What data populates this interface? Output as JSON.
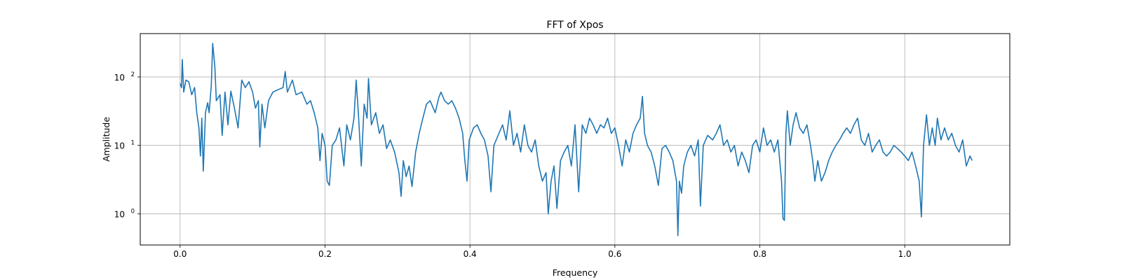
{
  "chart_data": {
    "type": "line",
    "title": "FFT of Xpos",
    "xlabel": "Frequency",
    "ylabel": "Amplitude",
    "xlim": [
      -0.055,
      1.145
    ],
    "ylim": [
      0.35,
      430
    ],
    "yscale": "log",
    "grid": true,
    "x_ticks": [
      {
        "value": 0.0,
        "label": "0.0"
      },
      {
        "value": 0.2,
        "label": "0.2"
      },
      {
        "value": 0.4,
        "label": "0.4"
      },
      {
        "value": 0.6,
        "label": "0.6"
      },
      {
        "value": 0.8,
        "label": "0.8"
      },
      {
        "value": 1.0,
        "label": "1.0"
      }
    ],
    "y_ticks": [
      {
        "value": 1,
        "base": "10",
        "exp": "0"
      },
      {
        "value": 10,
        "base": "10",
        "exp": "1"
      },
      {
        "value": 100,
        "base": "10",
        "exp": "2"
      }
    ],
    "series": [
      {
        "color": "#1f77b4",
        "points": [
          [
            0.0,
            80
          ],
          [
            0.002,
            70
          ],
          [
            0.003,
            180
          ],
          [
            0.005,
            60
          ],
          [
            0.008,
            90
          ],
          [
            0.012,
            85
          ],
          [
            0.016,
            55
          ],
          [
            0.02,
            70
          ],
          [
            0.023,
            30
          ],
          [
            0.026,
            18
          ],
          [
            0.028,
            7
          ],
          [
            0.03,
            25
          ],
          [
            0.032,
            4.2
          ],
          [
            0.035,
            30
          ],
          [
            0.038,
            42
          ],
          [
            0.04,
            30
          ],
          [
            0.043,
            75
          ],
          [
            0.045,
            310
          ],
          [
            0.048,
            140
          ],
          [
            0.05,
            45
          ],
          [
            0.055,
            55
          ],
          [
            0.058,
            14
          ],
          [
            0.062,
            60
          ],
          [
            0.066,
            20
          ],
          [
            0.07,
            62
          ],
          [
            0.075,
            35
          ],
          [
            0.08,
            18
          ],
          [
            0.085,
            90
          ],
          [
            0.09,
            70
          ],
          [
            0.095,
            85
          ],
          [
            0.1,
            60
          ],
          [
            0.104,
            35
          ],
          [
            0.108,
            45
          ],
          [
            0.11,
            9.5
          ],
          [
            0.113,
            40
          ],
          [
            0.117,
            18
          ],
          [
            0.122,
            45
          ],
          [
            0.128,
            60
          ],
          [
            0.135,
            65
          ],
          [
            0.142,
            70
          ],
          [
            0.145,
            120
          ],
          [
            0.148,
            60
          ],
          [
            0.155,
            90
          ],
          [
            0.16,
            55
          ],
          [
            0.168,
            60
          ],
          [
            0.175,
            40
          ],
          [
            0.18,
            45
          ],
          [
            0.185,
            30
          ],
          [
            0.19,
            18
          ],
          [
            0.193,
            6
          ],
          [
            0.196,
            15
          ],
          [
            0.2,
            10
          ],
          [
            0.203,
            3
          ],
          [
            0.206,
            2.6
          ],
          [
            0.21,
            10
          ],
          [
            0.215,
            12
          ],
          [
            0.22,
            18
          ],
          [
            0.226,
            5
          ],
          [
            0.23,
            20
          ],
          [
            0.235,
            12
          ],
          [
            0.24,
            25
          ],
          [
            0.243,
            90
          ],
          [
            0.246,
            30
          ],
          [
            0.25,
            5
          ],
          [
            0.254,
            40
          ],
          [
            0.258,
            25
          ],
          [
            0.26,
            95
          ],
          [
            0.264,
            20
          ],
          [
            0.27,
            30
          ],
          [
            0.275,
            15
          ],
          [
            0.28,
            20
          ],
          [
            0.285,
            9
          ],
          [
            0.29,
            12
          ],
          [
            0.296,
            8
          ],
          [
            0.302,
            4
          ],
          [
            0.305,
            1.8
          ],
          [
            0.308,
            6
          ],
          [
            0.312,
            3.5
          ],
          [
            0.316,
            5
          ],
          [
            0.32,
            2.5
          ],
          [
            0.325,
            8
          ],
          [
            0.33,
            15
          ],
          [
            0.335,
            25
          ],
          [
            0.34,
            40
          ],
          [
            0.345,
            45
          ],
          [
            0.352,
            30
          ],
          [
            0.357,
            50
          ],
          [
            0.36,
            60
          ],
          [
            0.365,
            45
          ],
          [
            0.37,
            40
          ],
          [
            0.375,
            45
          ],
          [
            0.38,
            35
          ],
          [
            0.385,
            25
          ],
          [
            0.39,
            15
          ],
          [
            0.393,
            6
          ],
          [
            0.396,
            3
          ],
          [
            0.399,
            12
          ],
          [
            0.405,
            18
          ],
          [
            0.41,
            20
          ],
          [
            0.415,
            15
          ],
          [
            0.42,
            12
          ],
          [
            0.425,
            7
          ],
          [
            0.429,
            2.1
          ],
          [
            0.433,
            10
          ],
          [
            0.44,
            15
          ],
          [
            0.445,
            20
          ],
          [
            0.45,
            12
          ],
          [
            0.455,
            32
          ],
          [
            0.46,
            10
          ],
          [
            0.465,
            15
          ],
          [
            0.47,
            8
          ],
          [
            0.475,
            20
          ],
          [
            0.48,
            10
          ],
          [
            0.485,
            8
          ],
          [
            0.49,
            12
          ],
          [
            0.495,
            5
          ],
          [
            0.5,
            3
          ],
          [
            0.505,
            4
          ],
          [
            0.508,
            1.0
          ],
          [
            0.512,
            3
          ],
          [
            0.516,
            5
          ],
          [
            0.52,
            1.2
          ],
          [
            0.525,
            6
          ],
          [
            0.53,
            8
          ],
          [
            0.535,
            10
          ],
          [
            0.54,
            5
          ],
          [
            0.545,
            20
          ],
          [
            0.55,
            2.1
          ],
          [
            0.555,
            20
          ],
          [
            0.56,
            15
          ],
          [
            0.565,
            25
          ],
          [
            0.57,
            20
          ],
          [
            0.575,
            15
          ],
          [
            0.58,
            20
          ],
          [
            0.585,
            18
          ],
          [
            0.59,
            25
          ],
          [
            0.595,
            15
          ],
          [
            0.6,
            18
          ],
          [
            0.605,
            10
          ],
          [
            0.61,
            5
          ],
          [
            0.615,
            12
          ],
          [
            0.62,
            8
          ],
          [
            0.625,
            15
          ],
          [
            0.63,
            20
          ],
          [
            0.635,
            25
          ],
          [
            0.638,
            52
          ],
          [
            0.641,
            15
          ],
          [
            0.645,
            10
          ],
          [
            0.65,
            8
          ],
          [
            0.655,
            5
          ],
          [
            0.66,
            2.6
          ],
          [
            0.665,
            9
          ],
          [
            0.67,
            10
          ],
          [
            0.675,
            8
          ],
          [
            0.68,
            6
          ],
          [
            0.685,
            3
          ],
          [
            0.687,
            0.48
          ],
          [
            0.689,
            3
          ],
          [
            0.692,
            2
          ],
          [
            0.695,
            5
          ],
          [
            0.7,
            8
          ],
          [
            0.705,
            10
          ],
          [
            0.71,
            7
          ],
          [
            0.715,
            12
          ],
          [
            0.718,
            1.3
          ],
          [
            0.722,
            10
          ],
          [
            0.728,
            14
          ],
          [
            0.735,
            12
          ],
          [
            0.74,
            15
          ],
          [
            0.745,
            20
          ],
          [
            0.75,
            10
          ],
          [
            0.755,
            12
          ],
          [
            0.76,
            8
          ],
          [
            0.765,
            10
          ],
          [
            0.77,
            5
          ],
          [
            0.775,
            8
          ],
          [
            0.78,
            6
          ],
          [
            0.785,
            4
          ],
          [
            0.79,
            10
          ],
          [
            0.795,
            12
          ],
          [
            0.8,
            8
          ],
          [
            0.805,
            18
          ],
          [
            0.81,
            10
          ],
          [
            0.815,
            12
          ],
          [
            0.82,
            8
          ],
          [
            0.825,
            12
          ],
          [
            0.83,
            3
          ],
          [
            0.832,
            0.85
          ],
          [
            0.834,
            0.8
          ],
          [
            0.836,
            15
          ],
          [
            0.838,
            32
          ],
          [
            0.842,
            10
          ],
          [
            0.846,
            20
          ],
          [
            0.85,
            30
          ],
          [
            0.855,
            18
          ],
          [
            0.86,
            15
          ],
          [
            0.865,
            20
          ],
          [
            0.87,
            10
          ],
          [
            0.873,
            6
          ],
          [
            0.876,
            3
          ],
          [
            0.88,
            6
          ],
          [
            0.885,
            3
          ],
          [
            0.89,
            4
          ],
          [
            0.895,
            6
          ],
          [
            0.9,
            8
          ],
          [
            0.905,
            10
          ],
          [
            0.91,
            12
          ],
          [
            0.915,
            15
          ],
          [
            0.92,
            18
          ],
          [
            0.925,
            15
          ],
          [
            0.93,
            20
          ],
          [
            0.935,
            25
          ],
          [
            0.94,
            12
          ],
          [
            0.945,
            10
          ],
          [
            0.95,
            15
          ],
          [
            0.955,
            8
          ],
          [
            0.96,
            10
          ],
          [
            0.965,
            12
          ],
          [
            0.97,
            8
          ],
          [
            0.975,
            7
          ],
          [
            0.98,
            8
          ],
          [
            0.985,
            10
          ],
          [
            0.99,
            9
          ],
          [
            0.995,
            8
          ],
          [
            1.0,
            7
          ],
          [
            1.005,
            6
          ],
          [
            1.01,
            8
          ],
          [
            1.015,
            5
          ],
          [
            1.02,
            3
          ],
          [
            1.023,
            0.9
          ],
          [
            1.026,
            10
          ],
          [
            1.03,
            28
          ],
          [
            1.034,
            10
          ],
          [
            1.038,
            18
          ],
          [
            1.042,
            10
          ],
          [
            1.045,
            25
          ],
          [
            1.05,
            12
          ],
          [
            1.055,
            18
          ],
          [
            1.06,
            12
          ],
          [
            1.065,
            15
          ],
          [
            1.07,
            10
          ],
          [
            1.075,
            8
          ],
          [
            1.08,
            12
          ],
          [
            1.085,
            5
          ],
          [
            1.09,
            7
          ],
          [
            1.093,
            6
          ]
        ]
      }
    ]
  }
}
